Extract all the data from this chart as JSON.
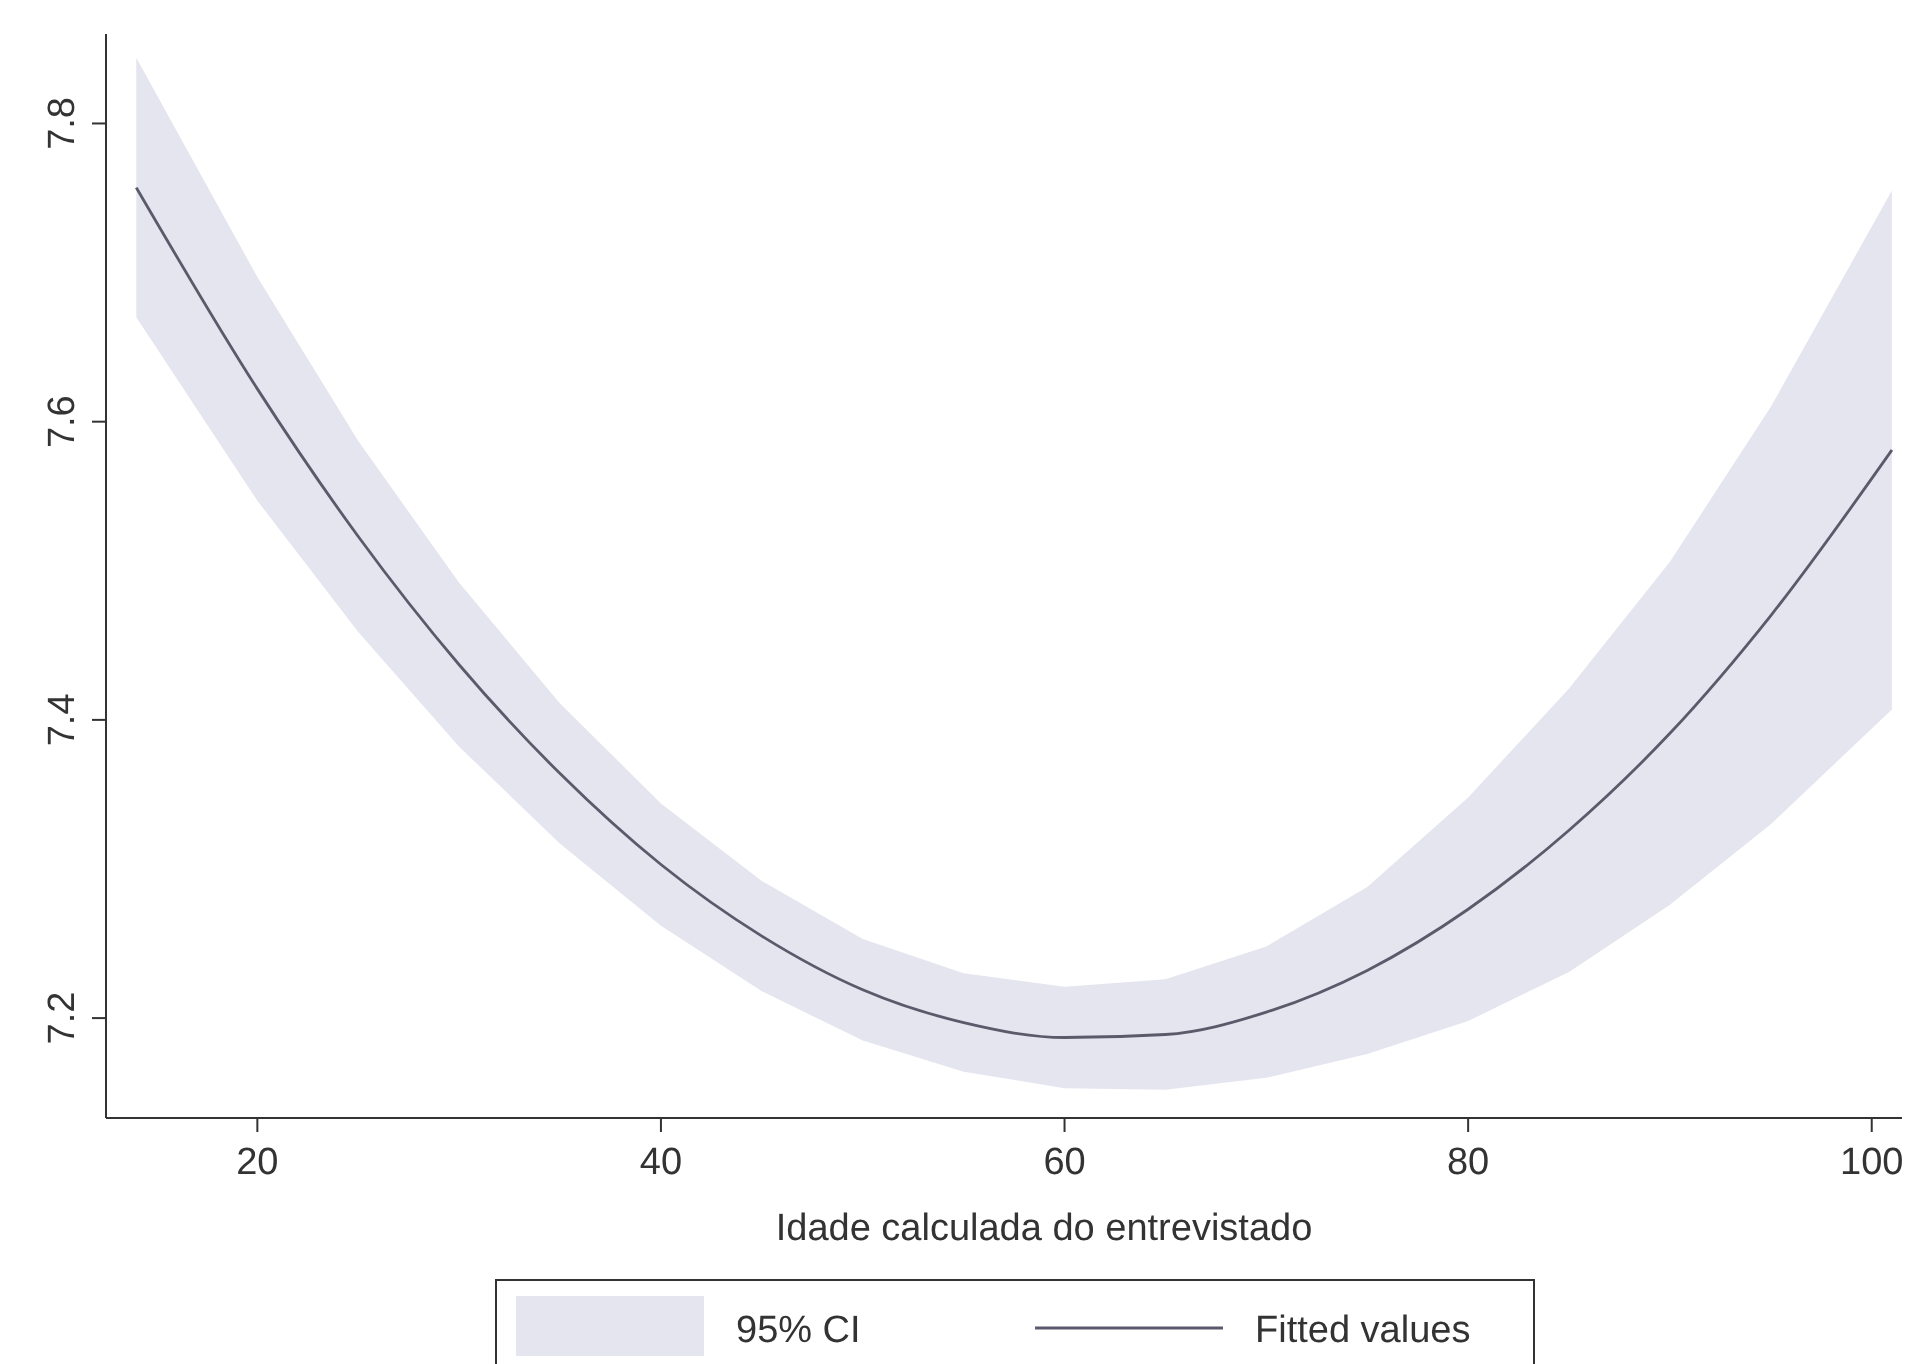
{
  "chart_data": {
    "type": "line",
    "xlabel": "Idade calculada do entrevistado",
    "annotations": [
      "95% CI"
    ],
    "x": [
      14,
      20,
      25,
      30,
      35,
      40,
      45,
      50,
      55,
      60,
      65,
      70,
      75,
      80,
      85,
      90,
      95,
      101
    ],
    "series": [
      {
        "name": "Fitted values",
        "color": "#5a5a6a",
        "values": [
          7.757,
          7.622,
          7.523,
          7.437,
          7.364,
          7.303,
          7.255,
          7.219,
          7.197,
          7.187,
          7.189,
          7.204,
          7.232,
          7.273,
          7.326,
          7.391,
          7.47,
          7.581
        ],
        "lower": [
          7.67,
          7.547,
          7.459,
          7.382,
          7.317,
          7.262,
          7.218,
          7.185,
          7.164,
          7.153,
          7.152,
          7.16,
          7.176,
          7.198,
          7.231,
          7.276,
          7.33,
          7.407
        ],
        "upper": [
          7.844,
          7.697,
          7.587,
          7.492,
          7.411,
          7.344,
          7.292,
          7.253,
          7.23,
          7.221,
          7.226,
          7.248,
          7.288,
          7.348,
          7.421,
          7.506,
          7.61,
          7.755
        ]
      }
    ],
    "xlim": [
      12.5,
      101.5
    ],
    "xticks": [
      20,
      40,
      60,
      80,
      100
    ],
    "ylim": [
      7.133,
      7.86
    ],
    "yticks": [
      7.2,
      7.4,
      7.6,
      7.8
    ],
    "grid": false,
    "legend": "bottom",
    "line_style": "solid",
    "marker": "none"
  }
}
